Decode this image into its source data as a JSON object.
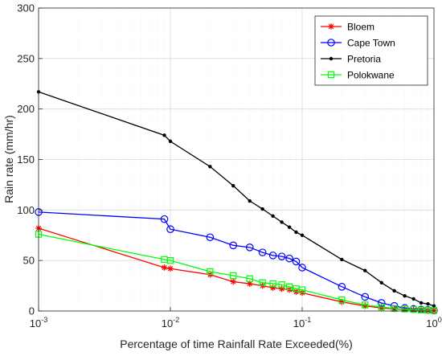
{
  "chart_data": {
    "type": "line",
    "xscale": "log",
    "xlim": [
      0.001,
      1
    ],
    "ylim": [
      0,
      300
    ],
    "xticks": [
      0.001,
      0.01,
      0.1,
      1
    ],
    "xtick_labels": [
      {
        "base": "10",
        "exp": "-3"
      },
      {
        "base": "10",
        "exp": "-2"
      },
      {
        "base": "10",
        "exp": "-1"
      },
      {
        "base": "10",
        "exp": "0"
      }
    ],
    "yticks": [
      0,
      50,
      100,
      150,
      200,
      250,
      300
    ],
    "xlabel": "Percentage of time Rainfall Rate Exceeded(%)",
    "ylabel": "Rain rate (mm/hr)",
    "grid": true,
    "legend_position": "top-right",
    "series": [
      {
        "name": "Bloem",
        "color": "#ff0000",
        "marker": "star",
        "x": [
          0.001,
          0.009,
          0.01,
          0.02,
          0.03,
          0.04,
          0.05,
          0.06,
          0.07,
          0.08,
          0.09,
          0.1,
          0.2,
          0.3,
          0.4,
          0.5,
          0.6,
          0.7,
          0.8,
          0.9,
          1.0
        ],
        "y": [
          82,
          43,
          42,
          36,
          29,
          27,
          25,
          23,
          22,
          21,
          19,
          18,
          9,
          5,
          3,
          2,
          1.5,
          1,
          0.8,
          0.5,
          0.3
        ]
      },
      {
        "name": "Cape Town",
        "color": "#0000ff",
        "marker": "circle",
        "x": [
          0.001,
          0.009,
          0.01,
          0.02,
          0.03,
          0.04,
          0.05,
          0.06,
          0.07,
          0.08,
          0.09,
          0.1,
          0.2,
          0.3,
          0.4,
          0.5,
          0.6,
          0.7,
          0.8,
          0.9,
          1.0
        ],
        "y": [
          98,
          91,
          81,
          73,
          65,
          63,
          58,
          55,
          54,
          52,
          49,
          43,
          24,
          14,
          8,
          5,
          3,
          2,
          1.5,
          1,
          0.5
        ]
      },
      {
        "name": "Pretoria",
        "color": "#000000",
        "marker": "dot",
        "x": [
          0.001,
          0.009,
          0.01,
          0.02,
          0.03,
          0.04,
          0.05,
          0.06,
          0.07,
          0.08,
          0.09,
          0.1,
          0.2,
          0.3,
          0.4,
          0.5,
          0.6,
          0.7,
          0.8,
          0.9,
          1.0
        ],
        "y": [
          217,
          174,
          168,
          143,
          124,
          109,
          101,
          94,
          88,
          83,
          78,
          75,
          51,
          40,
          28,
          20,
          15,
          12,
          8,
          7,
          5
        ]
      },
      {
        "name": "Polokwane",
        "color": "#00ff00",
        "marker": "square",
        "x": [
          0.001,
          0.009,
          0.01,
          0.02,
          0.03,
          0.04,
          0.05,
          0.06,
          0.07,
          0.08,
          0.09,
          0.1,
          0.2,
          0.3,
          0.4,
          0.5,
          0.6,
          0.7,
          0.8,
          0.9,
          1.0
        ],
        "y": [
          76,
          51,
          50,
          39,
          35,
          32,
          28,
          27,
          26,
          24,
          22,
          21,
          11,
          6,
          4,
          2.5,
          2,
          1.5,
          1,
          0.8,
          0.5
        ]
      }
    ]
  }
}
